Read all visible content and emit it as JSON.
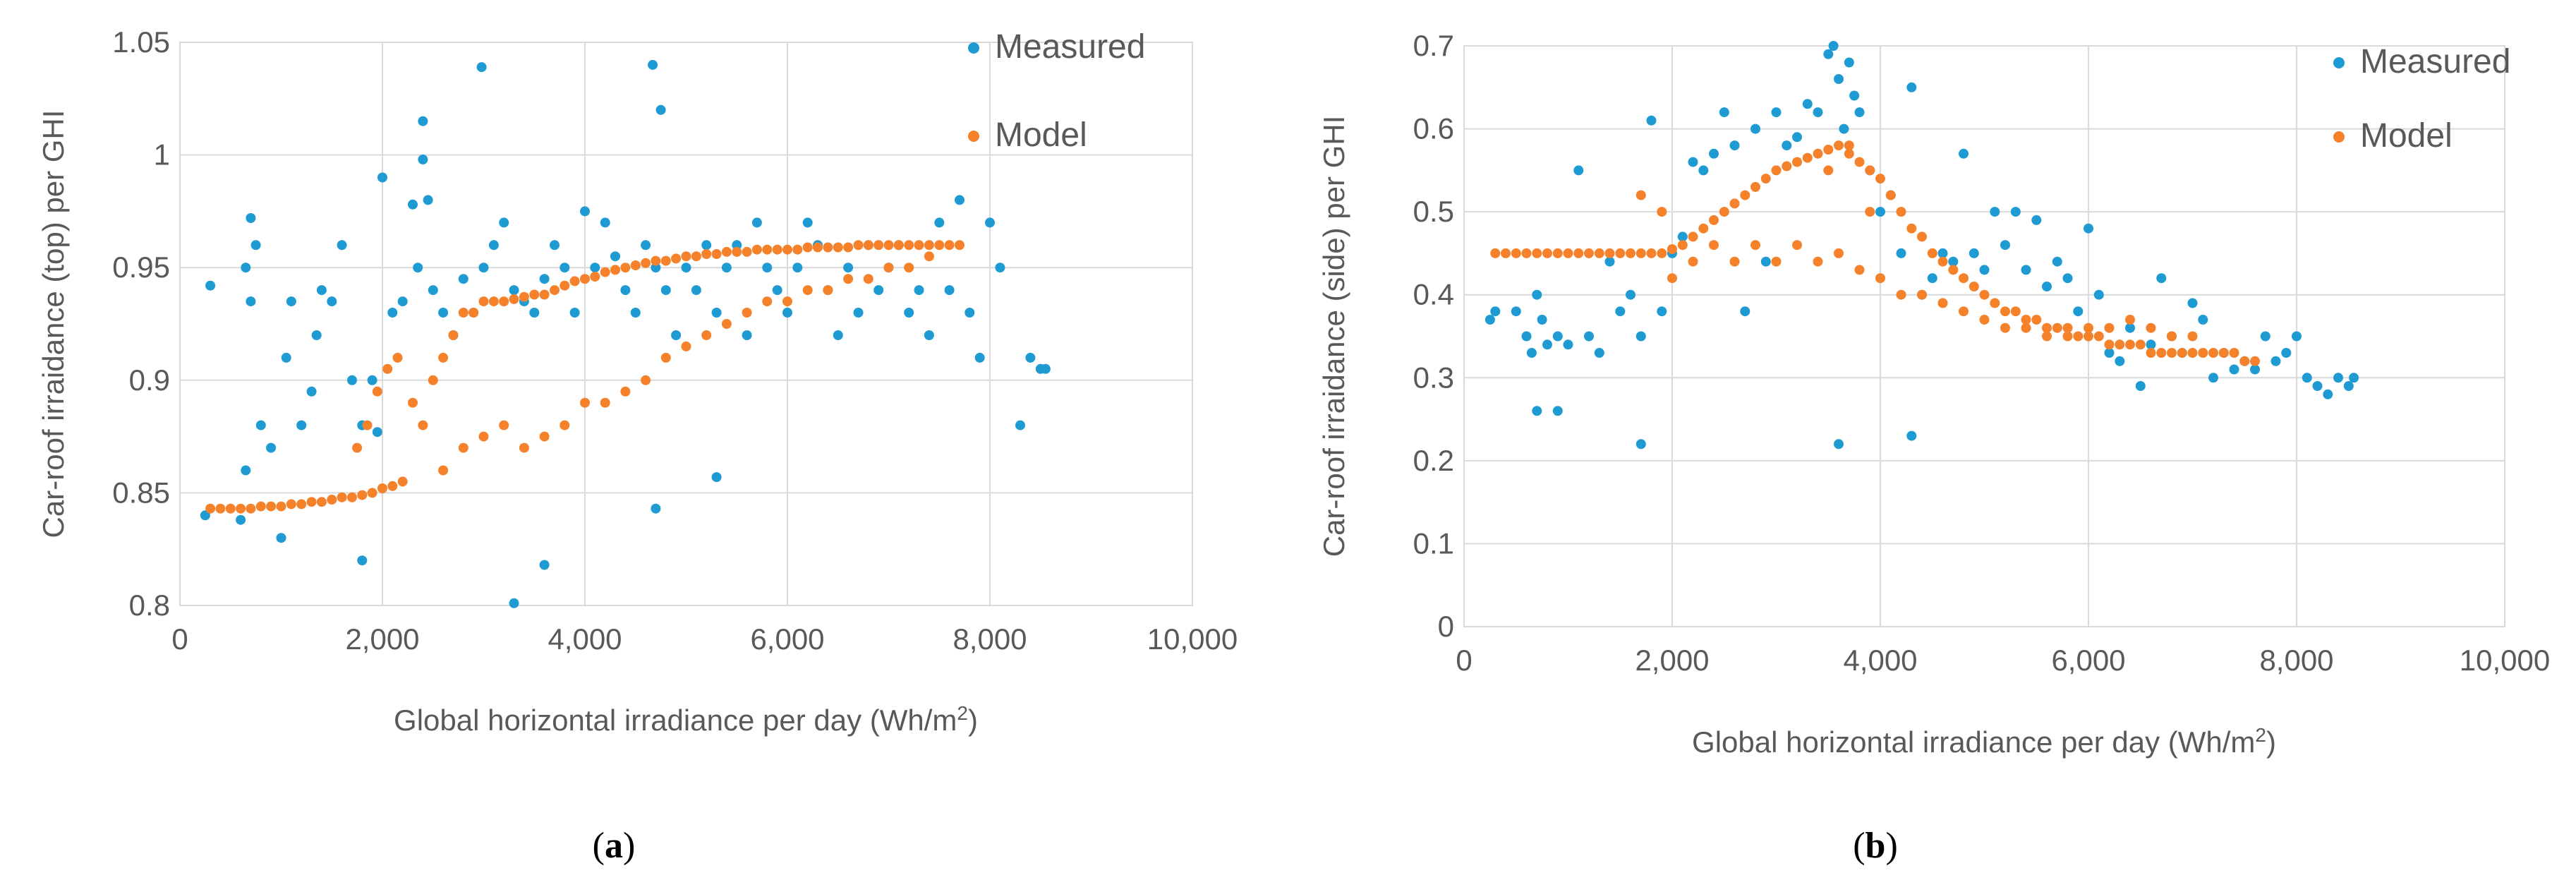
{
  "colors": {
    "measured": "#1f9bd3",
    "model": "#f5822a",
    "grid": "#d9d9d9",
    "text": "#595959"
  },
  "chart_data": [
    {
      "type": "scatter",
      "panel": "(a)",
      "panel_letter": "a",
      "xlabel": "Global horizontal irradiance per day (Wh/m2)",
      "xlabel_main": "Global horizontal irradiance per day (Wh/m",
      "xlabel_sup": "2",
      "xlabel_end": ")",
      "ylabel": "Car-roof irraidance (top) per GHI",
      "xlim": [
        0,
        10000
      ],
      "ylim": [
        0.8,
        1.05
      ],
      "xticks": [
        0,
        2000,
        4000,
        6000,
        8000,
        10000
      ],
      "xtick_labels": [
        "0",
        "2,000",
        "4,000",
        "6,000",
        "8,000",
        "10,000"
      ],
      "yticks": [
        0.8,
        0.85,
        0.9,
        0.95,
        1.0,
        1.05
      ],
      "ytick_labels": [
        "0.8",
        "0.85",
        "0.9",
        "0.95",
        "1",
        "1.05"
      ],
      "legend": [
        "Measured",
        "Model"
      ],
      "series": [
        {
          "name": "Measured",
          "x": [
            250,
            300,
            600,
            650,
            700,
            700,
            750,
            800,
            650,
            900,
            1000,
            1050,
            1100,
            1200,
            1300,
            1350,
            1400,
            1500,
            1600,
            1700,
            1800,
            1900,
            2000,
            2100,
            2200,
            2300,
            2350,
            2400,
            2450,
            2500,
            2600,
            2700,
            2800,
            2900,
            3000,
            3100,
            3200,
            3300,
            3400,
            3500,
            3600,
            3700,
            3800,
            3900,
            4000,
            4100,
            4200,
            4300,
            4400,
            4500,
            4600,
            4700,
            4800,
            4900,
            5000,
            5100,
            5200,
            5300,
            5400,
            5500,
            5600,
            5700,
            5800,
            5900,
            6000,
            6100,
            6200,
            6300,
            6400,
            6500,
            6600,
            6700,
            6800,
            6900,
            7000,
            7100,
            7200,
            7300,
            7400,
            7500,
            7600,
            7700,
            7800,
            7900,
            8000,
            8100,
            8300,
            8400,
            8500,
            8550,
            2980,
            4670,
            3300,
            4750,
            3600,
            4700,
            5300,
            1800,
            2400,
            1950
          ],
          "y": [
            0.84,
            0.942,
            0.838,
            0.95,
            0.972,
            0.935,
            0.96,
            0.88,
            0.86,
            0.87,
            0.83,
            0.91,
            0.935,
            0.88,
            0.895,
            0.92,
            0.94,
            0.935,
            0.96,
            0.9,
            0.88,
            0.9,
            0.99,
            0.93,
            0.935,
            0.978,
            0.95,
            1.015,
            0.98,
            0.94,
            0.93,
            0.92,
            0.945,
            0.93,
            0.95,
            0.96,
            0.97,
            0.94,
            0.935,
            0.93,
            0.945,
            0.96,
            0.95,
            0.93,
            0.975,
            0.95,
            0.97,
            0.955,
            0.94,
            0.93,
            0.96,
            0.95,
            0.94,
            0.92,
            0.95,
            0.94,
            0.96,
            0.93,
            0.95,
            0.96,
            0.92,
            0.97,
            0.95,
            0.94,
            0.93,
            0.95,
            0.97,
            0.96,
            0.94,
            0.92,
            0.95,
            0.93,
            0.96,
            0.94,
            0.95,
            0.96,
            0.93,
            0.94,
            0.92,
            0.97,
            0.94,
            0.98,
            0.93,
            0.91,
            0.97,
            0.95,
            0.88,
            0.91,
            0.905,
            0.905,
            1.039,
            1.04,
            0.801,
            1.02,
            0.818,
            0.843,
            0.857,
            0.82,
            0.998,
            0.877
          ]
        },
        {
          "name": "Model",
          "x": [
            300,
            400,
            500,
            600,
            700,
            800,
            900,
            1000,
            1100,
            1200,
            1300,
            1400,
            1500,
            1600,
            1700,
            1800,
            1900,
            2000,
            2100,
            2200,
            1750,
            1850,
            1950,
            2050,
            2150,
            2300,
            2400,
            2500,
            2600,
            2700,
            2800,
            2900,
            3000,
            3100,
            3200,
            3300,
            3400,
            3500,
            3600,
            3700,
            3800,
            3900,
            4000,
            4100,
            4200,
            4300,
            4400,
            4500,
            4600,
            4700,
            4800,
            4900,
            5000,
            5100,
            5200,
            5300,
            5400,
            5500,
            5600,
            5700,
            5800,
            5900,
            6000,
            6100,
            6200,
            6300,
            6400,
            6500,
            6600,
            6700,
            6800,
            6900,
            7000,
            7100,
            7200,
            7300,
            7400,
            7500,
            7600,
            7700,
            2600,
            2800,
            3000,
            3200,
            3400,
            3600,
            3800,
            4000,
            4200,
            4400,
            4600,
            4800,
            5000,
            5200,
            5400,
            5600,
            5800,
            6000,
            6200,
            6400,
            6600,
            6800,
            7000,
            7200,
            7400
          ],
          "y": [
            0.843,
            0.843,
            0.843,
            0.843,
            0.843,
            0.844,
            0.844,
            0.844,
            0.845,
            0.845,
            0.846,
            0.846,
            0.847,
            0.848,
            0.848,
            0.849,
            0.85,
            0.852,
            0.853,
            0.855,
            0.87,
            0.88,
            0.895,
            0.905,
            0.91,
            0.89,
            0.88,
            0.9,
            0.91,
            0.92,
            0.93,
            0.93,
            0.935,
            0.935,
            0.935,
            0.936,
            0.937,
            0.938,
            0.938,
            0.94,
            0.942,
            0.944,
            0.945,
            0.946,
            0.948,
            0.949,
            0.95,
            0.951,
            0.952,
            0.953,
            0.953,
            0.954,
            0.955,
            0.955,
            0.956,
            0.956,
            0.957,
            0.957,
            0.957,
            0.958,
            0.958,
            0.958,
            0.958,
            0.958,
            0.959,
            0.959,
            0.959,
            0.959,
            0.959,
            0.96,
            0.96,
            0.96,
            0.96,
            0.96,
            0.96,
            0.96,
            0.96,
            0.96,
            0.96,
            0.96,
            0.86,
            0.87,
            0.875,
            0.88,
            0.87,
            0.875,
            0.88,
            0.89,
            0.89,
            0.895,
            0.9,
            0.91,
            0.915,
            0.92,
            0.925,
            0.93,
            0.935,
            0.935,
            0.94,
            0.94,
            0.945,
            0.945,
            0.95,
            0.95,
            0.955
          ]
        }
      ]
    },
    {
      "type": "scatter",
      "panel": "(b)",
      "panel_letter": "b",
      "xlabel": "Global horizontal irradiance per day (Wh/m2)",
      "xlabel_main": "Global horizontal irradiance per day (Wh/m",
      "xlabel_sup": "2",
      "xlabel_end": ")",
      "ylabel": "Car-roof irraidance (side) per GHI",
      "xlim": [
        0,
        10000
      ],
      "ylim": [
        0,
        0.7
      ],
      "xticks": [
        0,
        2000,
        4000,
        6000,
        8000,
        10000
      ],
      "xtick_labels": [
        "0",
        "2,000",
        "4,000",
        "6,000",
        "8,000",
        "10,000"
      ],
      "yticks": [
        0,
        0.1,
        0.2,
        0.3,
        0.4,
        0.5,
        0.6,
        0.7
      ],
      "ytick_labels": [
        "0",
        "0.1",
        "0.2",
        "0.3",
        "0.4",
        "0.5",
        "0.6",
        "0.7"
      ],
      "legend": [
        "Measured",
        "Model"
      ],
      "series": [
        {
          "name": "Measured",
          "x": [
            250,
            300,
            500,
            600,
            650,
            700,
            750,
            800,
            900,
            1000,
            1100,
            1200,
            1300,
            1400,
            1500,
            1600,
            1700,
            1800,
            1900,
            2000,
            2100,
            2200,
            2300,
            2400,
            2500,
            2600,
            2700,
            2800,
            2900,
            3000,
            3100,
            3200,
            3300,
            3400,
            3500,
            3550,
            3600,
            3650,
            3700,
            3750,
            3800,
            3900,
            4000,
            4100,
            4200,
            4300,
            4400,
            4500,
            4600,
            4700,
            4800,
            4900,
            5000,
            5100,
            5200,
            5300,
            5400,
            5500,
            5600,
            5700,
            5800,
            5900,
            6000,
            6100,
            6200,
            6300,
            6400,
            6500,
            6600,
            6700,
            6800,
            6900,
            7000,
            7100,
            7200,
            7300,
            7400,
            7500,
            7600,
            7700,
            7800,
            7900,
            8000,
            8100,
            8200,
            8300,
            8400,
            8500,
            8550,
            700,
            900,
            1700,
            3600,
            4300
          ],
          "y": [
            0.37,
            0.38,
            0.38,
            0.35,
            0.33,
            0.4,
            0.37,
            0.34,
            0.35,
            0.34,
            0.55,
            0.35,
            0.33,
            0.44,
            0.38,
            0.4,
            0.35,
            0.61,
            0.38,
            0.45,
            0.47,
            0.56,
            0.55,
            0.57,
            0.62,
            0.58,
            0.38,
            0.6,
            0.44,
            0.62,
            0.58,
            0.59,
            0.63,
            0.62,
            0.69,
            0.7,
            0.66,
            0.6,
            0.68,
            0.64,
            0.62,
            0.55,
            0.5,
            0.52,
            0.45,
            0.65,
            0.4,
            0.42,
            0.45,
            0.44,
            0.57,
            0.45,
            0.43,
            0.5,
            0.46,
            0.5,
            0.43,
            0.49,
            0.41,
            0.44,
            0.42,
            0.38,
            0.48,
            0.4,
            0.33,
            0.32,
            0.36,
            0.29,
            0.34,
            0.42,
            0.35,
            0.33,
            0.39,
            0.37,
            0.3,
            0.33,
            0.31,
            0.32,
            0.31,
            0.35,
            0.32,
            0.33,
            0.35,
            0.3,
            0.29,
            0.28,
            0.3,
            0.29,
            0.3,
            0.26,
            0.26,
            0.22,
            0.22,
            0.23
          ]
        },
        {
          "name": "Model",
          "x": [
            300,
            400,
            500,
            600,
            700,
            800,
            900,
            1000,
            1100,
            1200,
            1300,
            1400,
            1500,
            1600,
            1700,
            1800,
            1900,
            2000,
            2100,
            2200,
            2300,
            2400,
            2500,
            2600,
            2700,
            2800,
            2900,
            3000,
            3100,
            3200,
            3300,
            3400,
            3500,
            3600,
            3700,
            3800,
            3900,
            4000,
            4100,
            4200,
            4300,
            4400,
            4500,
            4600,
            4700,
            4800,
            4900,
            5000,
            5100,
            5200,
            5300,
            5400,
            5500,
            5600,
            5700,
            5800,
            5900,
            6000,
            6100,
            6200,
            6300,
            6400,
            6500,
            6600,
            6700,
            6800,
            6900,
            7000,
            7100,
            7200,
            7300,
            7400,
            7500,
            7600,
            2000,
            2200,
            2400,
            2600,
            2800,
            3000,
            3200,
            3400,
            3600,
            3800,
            4000,
            4200,
            4400,
            4600,
            4800,
            5000,
            5200,
            5400,
            5600,
            5800,
            6000,
            6200,
            6400,
            6600,
            6800,
            7000,
            1700,
            1900,
            3500,
            3700,
            3900
          ],
          "y": [
            0.45,
            0.45,
            0.45,
            0.45,
            0.45,
            0.45,
            0.45,
            0.45,
            0.45,
            0.45,
            0.45,
            0.45,
            0.45,
            0.45,
            0.45,
            0.45,
            0.45,
            0.455,
            0.46,
            0.47,
            0.48,
            0.49,
            0.5,
            0.51,
            0.52,
            0.53,
            0.54,
            0.55,
            0.555,
            0.56,
            0.565,
            0.57,
            0.575,
            0.58,
            0.57,
            0.56,
            0.55,
            0.54,
            0.52,
            0.5,
            0.48,
            0.47,
            0.45,
            0.44,
            0.43,
            0.42,
            0.41,
            0.4,
            0.39,
            0.38,
            0.38,
            0.37,
            0.37,
            0.36,
            0.36,
            0.36,
            0.35,
            0.35,
            0.35,
            0.34,
            0.34,
            0.34,
            0.34,
            0.33,
            0.33,
            0.33,
            0.33,
            0.33,
            0.33,
            0.33,
            0.33,
            0.33,
            0.32,
            0.32,
            0.42,
            0.44,
            0.46,
            0.44,
            0.46,
            0.44,
            0.46,
            0.44,
            0.45,
            0.43,
            0.42,
            0.4,
            0.4,
            0.39,
            0.38,
            0.37,
            0.36,
            0.36,
            0.35,
            0.35,
            0.36,
            0.36,
            0.37,
            0.36,
            0.35,
            0.35,
            0.52,
            0.5,
            0.55,
            0.58,
            0.5
          ]
        }
      ]
    }
  ]
}
